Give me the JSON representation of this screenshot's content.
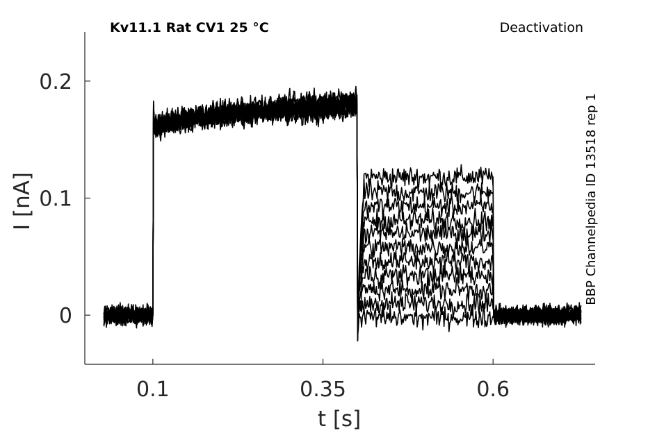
{
  "chart_data": {
    "type": "line",
    "title_left": "Kv11.1  Rat  CV1  25 °C",
    "title_right": "Deactivation",
    "side_label": "BBP Channelpedia ID 13518 rep 1",
    "xlabel": "t [s]",
    "ylabel": "I [nA]",
    "xlim": [
      0.0,
      0.75
    ],
    "ylim": [
      -0.042,
      0.242
    ],
    "xticks": [
      0.1,
      0.35,
      0.6
    ],
    "xtick_labels": [
      "0.1",
      "0.35",
      "0.6"
    ],
    "yticks": [
      0,
      0.1,
      0.2
    ],
    "ytick_labels": [
      "0",
      "0.1",
      "0.2"
    ],
    "grid": false,
    "protocol": {
      "baseline_start": 0.028,
      "step_on": 0.1,
      "step_off": 0.4,
      "tail_off": 0.6,
      "end": 0.73
    },
    "series": [
      {
        "baseline": 0.0,
        "step_level": 0.163,
        "step_drift": 0.012,
        "tail_level": 0.118
      },
      {
        "baseline": 0.0,
        "step_level": 0.16,
        "step_drift": 0.02,
        "tail_level": 0.105
      },
      {
        "baseline": 0.0,
        "step_level": 0.158,
        "step_drift": 0.03,
        "tail_level": 0.093
      },
      {
        "baseline": 0.0,
        "step_level": 0.157,
        "step_drift": 0.018,
        "tail_level": 0.081
      },
      {
        "baseline": 0.0,
        "step_level": 0.155,
        "step_drift": 0.025,
        "tail_level": 0.07
      },
      {
        "baseline": 0.0,
        "step_level": 0.162,
        "step_drift": 0.015,
        "tail_level": 0.058
      },
      {
        "baseline": 0.0,
        "step_level": 0.156,
        "step_drift": 0.028,
        "tail_level": 0.046
      },
      {
        "baseline": 0.0,
        "step_level": 0.159,
        "step_drift": 0.022,
        "tail_level": 0.034
      },
      {
        "baseline": 0.0,
        "step_level": 0.161,
        "step_drift": 0.016,
        "tail_level": 0.022
      },
      {
        "baseline": 0.0,
        "step_level": 0.157,
        "step_drift": 0.024,
        "tail_level": 0.01
      },
      {
        "baseline": 0.0,
        "step_level": 0.16,
        "step_drift": 0.019,
        "tail_level": -0.002
      }
    ]
  }
}
